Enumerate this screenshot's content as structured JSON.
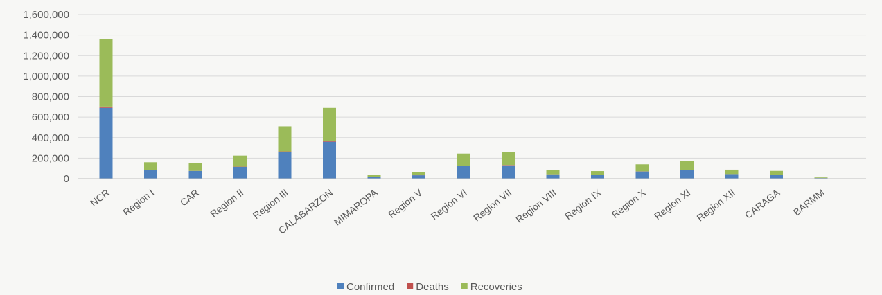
{
  "chart_data": {
    "type": "bar",
    "stacked": true,
    "title": "",
    "xlabel": "",
    "ylabel": "",
    "categories": [
      "NCR",
      "Region I",
      "CAR",
      "Region II",
      "Region III",
      "CALABARZON",
      "MIMAROPA",
      "Region V",
      "Region VI",
      "Region VII",
      "Region VIII",
      "Region IX",
      "Region X",
      "Region XI",
      "Region XII",
      "CARAGA",
      "BARMM"
    ],
    "series": [
      {
        "name": "Confirmed",
        "color": "#4f81bd",
        "values": [
          690000,
          82000,
          75000,
          115000,
          260000,
          360000,
          20000,
          33000,
          125000,
          130000,
          42000,
          37000,
          70000,
          85000,
          44000,
          38000,
          6000
        ]
      },
      {
        "name": "Deaths",
        "color": "#c0504d",
        "values": [
          13000,
          1500,
          1200,
          2500,
          6000,
          8000,
          300,
          800,
          3000,
          3500,
          800,
          900,
          1500,
          2500,
          900,
          800,
          200
        ]
      },
      {
        "name": "Recoveries",
        "color": "#9bbb59",
        "values": [
          657000,
          76500,
          73800,
          107500,
          244000,
          322000,
          19700,
          31200,
          117000,
          126500,
          41200,
          36100,
          68500,
          82500,
          43100,
          37200,
          5800
        ]
      }
    ],
    "ylim": [
      0,
      1600000
    ],
    "yticks": [
      0,
      200000,
      400000,
      600000,
      800000,
      1000000,
      1200000,
      1400000,
      1600000
    ],
    "ytick_labels": [
      "0",
      "200,000",
      "400,000",
      "600,000",
      "800,000",
      "1,000,000",
      "1,200,000",
      "1,400,000",
      "1,600,000"
    ],
    "grid": true,
    "legend_position": "bottom"
  }
}
